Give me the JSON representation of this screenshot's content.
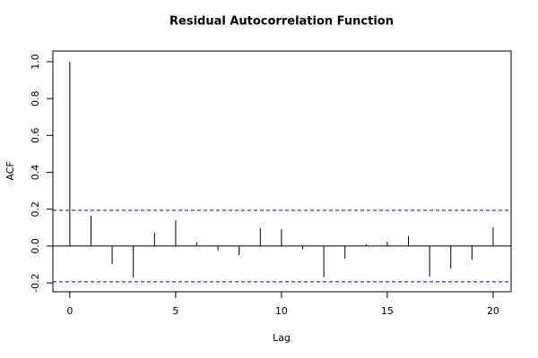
{
  "chart_data": {
    "type": "acf",
    "title": "Residual Autocorrelation Function",
    "x_label": "Lag",
    "y_label": "ACF",
    "x": [
      0,
      1,
      2,
      3,
      4,
      5,
      6,
      7,
      8,
      9,
      10,
      11,
      12,
      13,
      14,
      15,
      16,
      17,
      18,
      19,
      20
    ],
    "values": [
      1.0,
      0.165,
      -0.097,
      -0.17,
      0.073,
      0.14,
      0.02,
      -0.024,
      -0.049,
      0.097,
      0.092,
      -0.019,
      -0.17,
      -0.068,
      0.01,
      0.024,
      0.053,
      -0.165,
      -0.121,
      -0.073,
      0.102
    ],
    "confidence_bounds": [
      -0.194,
      0.194
    ],
    "color": "#000000",
    "bound_color": "#0000cc",
    "xlim": [
      -0.8,
      20.85
    ],
    "ylim": [
      -0.248,
      1.058
    ],
    "xticks": [
      0,
      5,
      10,
      15,
      20
    ],
    "yticks": [
      -0.2,
      {
        "value": 0,
        "label": "0.0"
      },
      0.2,
      0.4,
      0.6,
      0.8,
      {
        "value": 1,
        "label": "1.0"
      }
    ]
  }
}
